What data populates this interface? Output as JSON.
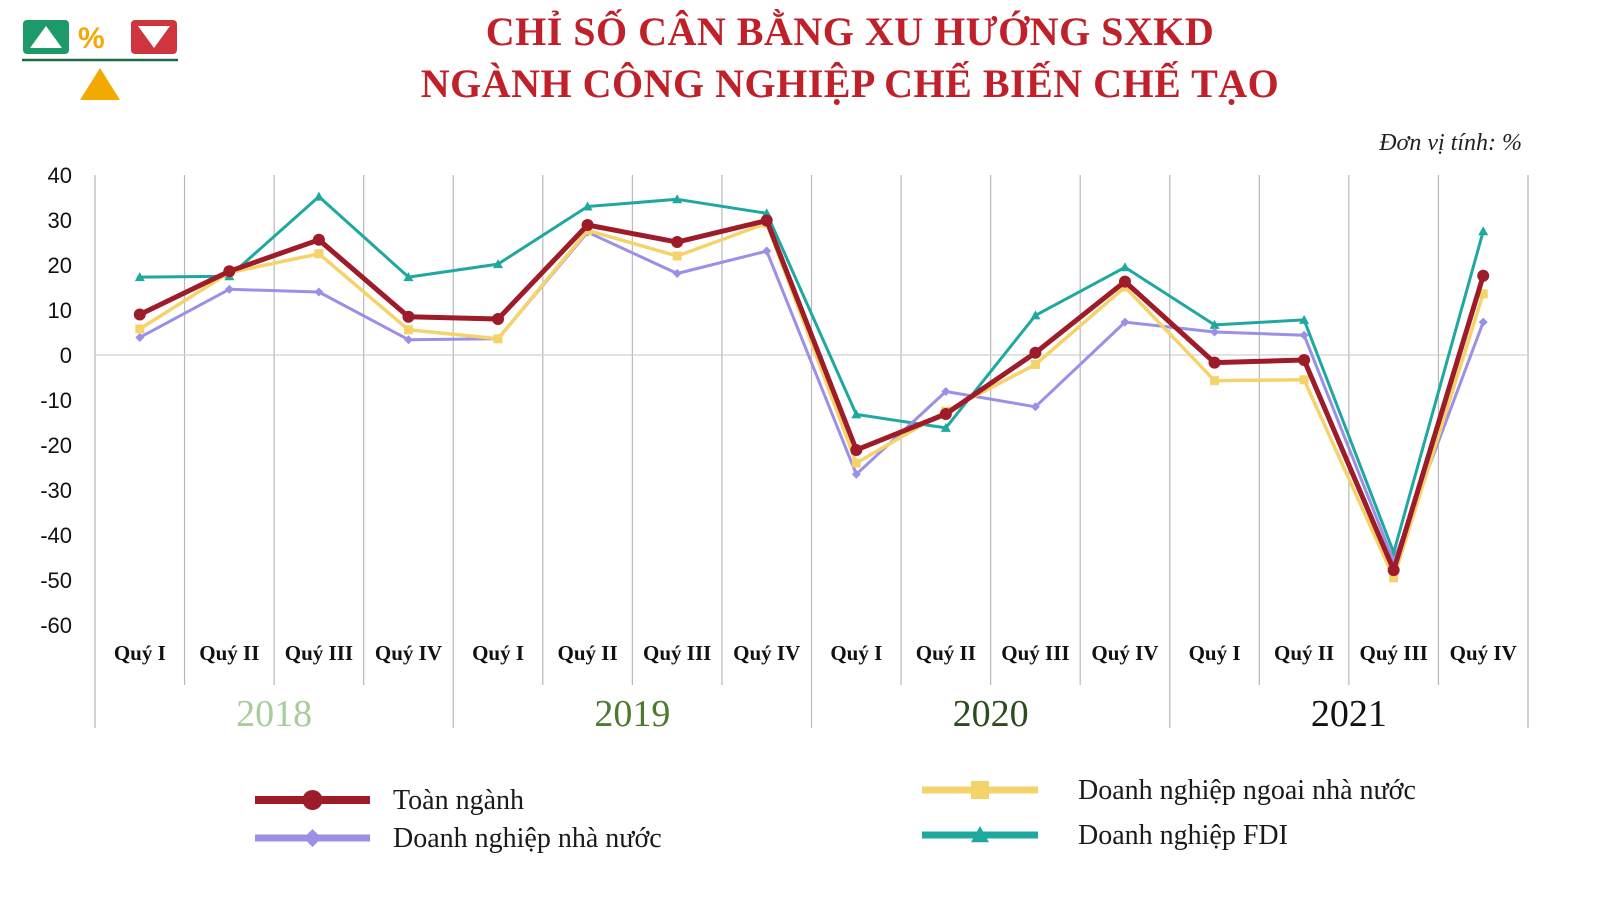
{
  "title_line1": "CHỈ SỐ CÂN BẰNG XU HƯỚNG SXKD",
  "title_line2": "NGÀNH CÔNG NGHIỆP CHẾ BIẾN CHẾ TẠO",
  "unit_label": "Đơn vị tính: %",
  "logo": {
    "percent_glyph": "%",
    "colors": {
      "green": "#1e9a6a",
      "orange": "#f2a900",
      "red": "#d0343f"
    }
  },
  "chart_data": {
    "type": "line",
    "ylim": [
      -60,
      40
    ],
    "yticks": [
      "40",
      "30",
      "20",
      "10",
      "0",
      "-10",
      "-20",
      "-30",
      "-40",
      "-50",
      "-60"
    ],
    "categories": [
      "Quý I",
      "Quý II",
      "Quý III",
      "Quý IV",
      "Quý I",
      "Quý II",
      "Quý III",
      "Quý IV",
      "Quý I",
      "Quý II",
      "Quý III",
      "Quý IV",
      "Quý I",
      "Quý II",
      "Quý III",
      "Quý IV"
    ],
    "years": [
      {
        "label": "2018",
        "color": "#a8cc9a"
      },
      {
        "label": "2019",
        "color": "#4f7a2e"
      },
      {
        "label": "2020",
        "color": "#2e4a1e"
      },
      {
        "label": "2021",
        "color": "#111111"
      }
    ],
    "grid": true,
    "legend_position": "bottom",
    "series": [
      {
        "name": "Doanh nghiệp FDI",
        "color": "#1fa8a0",
        "marker": "triangle",
        "values": [
          17.3,
          17.5,
          35.2,
          17.3,
          20.2,
          33.0,
          34.6,
          31.5,
          -13.2,
          -16.2,
          8.8,
          19.5,
          6.7,
          7.8,
          -43.9,
          27.5
        ]
      },
      {
        "name": "Doanh nghiệp nhà nước",
        "color": "#9b8fe6",
        "marker": "diamond",
        "values": [
          3.9,
          14.6,
          14.0,
          3.4,
          3.6,
          27.3,
          18.1,
          23.1,
          -26.5,
          -8.1,
          -11.5,
          7.3,
          5.1,
          4.4,
          -45.8,
          7.3
        ]
      },
      {
        "name": "Doanh nghiệp ngoai nhà nước",
        "color": "#f5d36b",
        "marker": "square",
        "values": [
          5.8,
          18.3,
          22.5,
          5.6,
          3.6,
          27.7,
          22.0,
          29.3,
          -24.0,
          -12.5,
          -2.1,
          15.1,
          -5.7,
          -5.5,
          -49.5,
          13.6
        ]
      },
      {
        "name": "Toàn ngành",
        "color": "#9e1b2a",
        "marker": "circle",
        "values": [
          9.0,
          18.6,
          25.6,
          8.5,
          8.0,
          28.9,
          25.1,
          29.9,
          -21.1,
          -13.1,
          0.5,
          16.3,
          -1.7,
          -1.1,
          -47.8,
          17.6
        ]
      }
    ]
  },
  "legend": {
    "items": [
      {
        "name": "Toàn ngành",
        "color": "#9e1b2a",
        "marker": "circle"
      },
      {
        "name": "Doanh nghiệp nhà nước",
        "color": "#9b8fe6",
        "marker": "diamond"
      },
      {
        "name": "Doanh nghiệp ngoai nhà nước",
        "color": "#f5d36b",
        "marker": "square"
      },
      {
        "name": "Doanh nghiệp FDI",
        "color": "#1fa8a0",
        "marker": "triangle"
      }
    ]
  }
}
